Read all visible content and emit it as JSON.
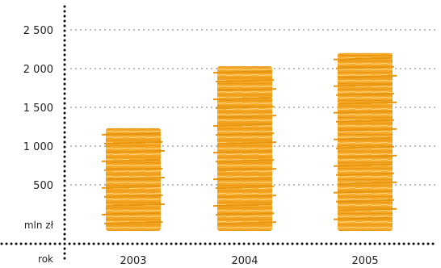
{
  "chart_data": {
    "type": "bar",
    "title": "",
    "categories": [
      "2003",
      "2004",
      "2005"
    ],
    "values": [
      1230,
      2030,
      2200
    ],
    "ylim": [
      0,
      2500
    ],
    "yticks": [
      {
        "value": 500,
        "label": "500"
      },
      {
        "value": 1000,
        "label": "1 000"
      },
      {
        "value": 1500,
        "label": "1 500"
      },
      {
        "value": 2000,
        "label": "2 000"
      },
      {
        "value": 2500,
        "label": "2 500"
      }
    ],
    "ylabel": "mln zł",
    "xlabel": "rok",
    "grid": true,
    "bar_style": "stacked paper sheets",
    "colors": {
      "bar": "#f5a623",
      "bar_light": "#ffd27a",
      "grid": "#b8b8b8",
      "axis": "#111111"
    }
  }
}
